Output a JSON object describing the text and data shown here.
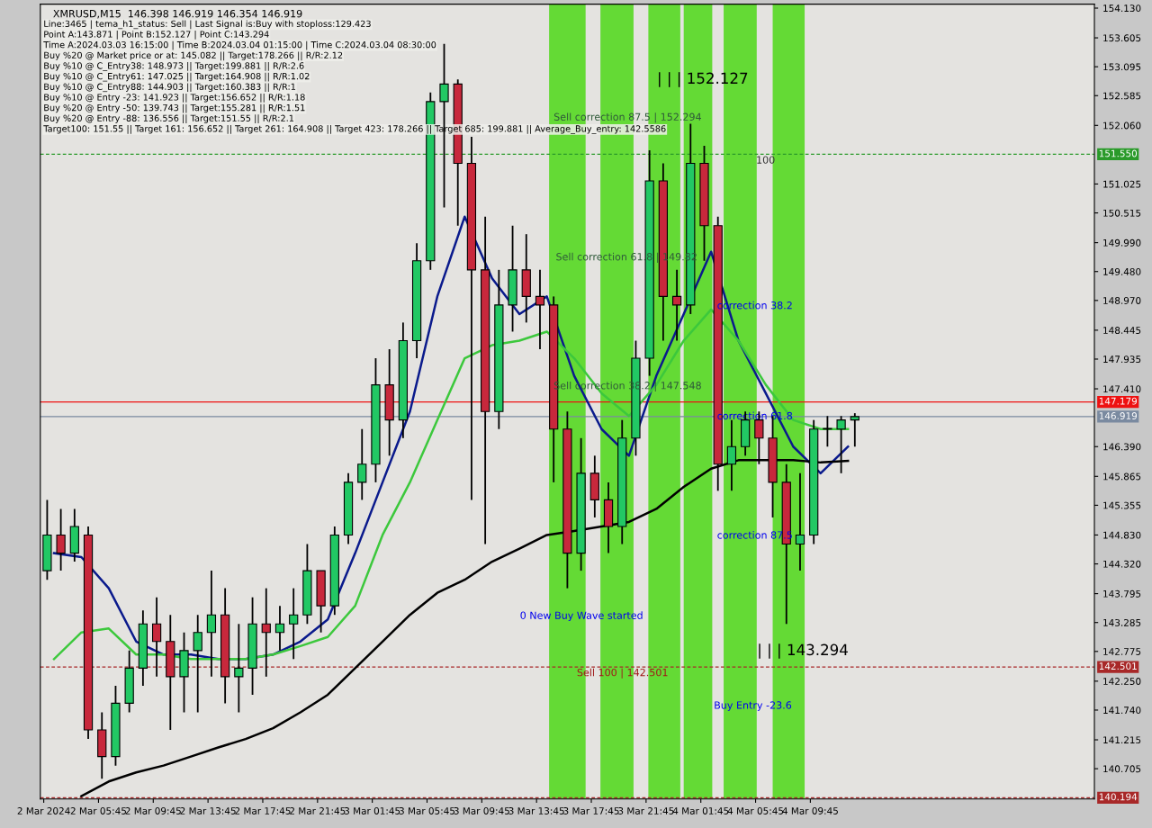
{
  "chart_data": {
    "type": "candlestick",
    "title": "XMRUSD,M15  146.398 146.919 146.354 146.919",
    "x": [
      "2024-03-02T02:00",
      "2024-03-02T03:00",
      "2024-03-02T04:00",
      "2024-03-02T05:00",
      "2024-03-02T06:00",
      "2024-03-02T07:00",
      "2024-03-02T08:00",
      "2024-03-02T09:00",
      "2024-03-02T10:00",
      "2024-03-02T11:00",
      "2024-03-02T12:00",
      "2024-03-02T13:00",
      "2024-03-02T14:00",
      "2024-03-02T15:00",
      "2024-03-02T16:00",
      "2024-03-02T17:00",
      "2024-03-02T18:00",
      "2024-03-02T19:00",
      "2024-03-02T20:00",
      "2024-03-02T21:00",
      "2024-03-02T22:00",
      "2024-03-02T23:00",
      "2024-03-03T00:00",
      "2024-03-03T01:00",
      "2024-03-03T02:00",
      "2024-03-03T03:00",
      "2024-03-03T04:00",
      "2024-03-03T05:00",
      "2024-03-03T06:00",
      "2024-03-03T07:00",
      "2024-03-03T08:00",
      "2024-03-03T09:00",
      "2024-03-03T10:00",
      "2024-03-03T11:00",
      "2024-03-03T12:00",
      "2024-03-03T13:00",
      "2024-03-03T14:00",
      "2024-03-03T15:00",
      "2024-03-03T16:00",
      "2024-03-03T17:00",
      "2024-03-03T18:00",
      "2024-03-03T19:00",
      "2024-03-03T20:00",
      "2024-03-03T21:00",
      "2024-03-03T22:00",
      "2024-03-03T23:00",
      "2024-03-04T00:00",
      "2024-03-04T01:00",
      "2024-03-04T02:00",
      "2024-03-04T03:00",
      "2024-03-04T04:00",
      "2024-03-04T05:00",
      "2024-03-04T06:00",
      "2024-03-04T07:00",
      "2024-03-04T08:00",
      "2024-03-04T09:00",
      "2024-03-04T10:00",
      "2024-03-04T11:00",
      "2024-03-04T12:00",
      "2024-03-04T13:00"
    ],
    "ohlc": [
      [
        144.2,
        145.45,
        144.04,
        144.83
      ],
      [
        144.83,
        145.29,
        144.2,
        144.51
      ],
      [
        144.51,
        145.29,
        144.36,
        144.98
      ],
      [
        144.83,
        144.98,
        141.23,
        141.39
      ],
      [
        141.39,
        141.7,
        140.53,
        140.92
      ],
      [
        140.92,
        142.17,
        140.76,
        141.86
      ],
      [
        141.86,
        142.79,
        141.7,
        142.48
      ],
      [
        142.48,
        143.5,
        142.17,
        143.26
      ],
      [
        143.26,
        143.73,
        142.33,
        142.95
      ],
      [
        142.95,
        143.42,
        141.39,
        142.33
      ],
      [
        142.33,
        143.11,
        141.7,
        142.79
      ],
      [
        142.79,
        143.42,
        141.7,
        143.11
      ],
      [
        143.11,
        144.2,
        142.33,
        143.42
      ],
      [
        143.42,
        143.89,
        141.86,
        142.33
      ],
      [
        142.33,
        143.26,
        141.7,
        142.48
      ],
      [
        142.48,
        143.73,
        142.01,
        143.26
      ],
      [
        143.26,
        143.89,
        142.33,
        143.11
      ],
      [
        143.11,
        143.58,
        142.79,
        143.26
      ],
      [
        143.26,
        143.89,
        142.64,
        143.42
      ],
      [
        143.42,
        144.67,
        143.26,
        144.2
      ],
      [
        144.2,
        144.2,
        143.11,
        143.58
      ],
      [
        143.58,
        144.98,
        143.42,
        144.83
      ],
      [
        144.83,
        145.92,
        144.67,
        145.76
      ],
      [
        145.76,
        146.7,
        145.45,
        146.08
      ],
      [
        146.08,
        147.95,
        145.76,
        147.48
      ],
      [
        147.48,
        148.11,
        146.23,
        146.86
      ],
      [
        146.86,
        148.58,
        146.54,
        148.26
      ],
      [
        148.26,
        149.98,
        147.95,
        149.67
      ],
      [
        149.67,
        152.64,
        149.51,
        152.48
      ],
      [
        152.48,
        153.5,
        150.61,
        152.79
      ],
      [
        152.79,
        152.87,
        150.29,
        151.39
      ],
      [
        151.39,
        151.86,
        145.45,
        149.51
      ],
      [
        149.51,
        150.45,
        144.67,
        147.01
      ],
      [
        147.01,
        149.51,
        146.7,
        148.89
      ],
      [
        148.89,
        150.29,
        148.42,
        149.51
      ],
      [
        149.51,
        150.14,
        148.58,
        149.04
      ],
      [
        149.04,
        149.51,
        148.11,
        148.89
      ],
      [
        148.89,
        149.04,
        145.76,
        146.7
      ],
      [
        146.7,
        147.01,
        143.89,
        144.51
      ],
      [
        144.51,
        146.54,
        144.2,
        145.92
      ],
      [
        145.92,
        146.23,
        145.14,
        145.45
      ],
      [
        145.45,
        145.76,
        144.51,
        144.98
      ],
      [
        144.98,
        146.86,
        144.67,
        146.54
      ],
      [
        146.54,
        148.26,
        146.23,
        147.95
      ],
      [
        147.95,
        151.62,
        147.64,
        151.08
      ],
      [
        151.08,
        151.39,
        148.26,
        149.04
      ],
      [
        149.04,
        149.51,
        148.26,
        148.89
      ],
      [
        148.89,
        152.09,
        148.73,
        151.39
      ],
      [
        151.39,
        151.7,
        149.67,
        150.29
      ],
      [
        150.29,
        150.45,
        145.61,
        146.08
      ],
      [
        146.08,
        146.86,
        145.61,
        146.39
      ],
      [
        146.39,
        147.01,
        146.23,
        146.86
      ],
      [
        146.86,
        147.01,
        146.08,
        146.54
      ],
      [
        146.54,
        146.93,
        145.14,
        145.76
      ],
      [
        145.76,
        146.08,
        143.26,
        144.67
      ],
      [
        144.67,
        145.92,
        144.2,
        144.83
      ],
      [
        144.83,
        146.86,
        144.67,
        146.7
      ],
      [
        146.7,
        146.93,
        146.39,
        146.7
      ],
      [
        146.7,
        146.93,
        145.92,
        146.86
      ],
      [
        146.86,
        146.98,
        146.39,
        146.92
      ]
    ],
    "series": [
      {
        "type": "line",
        "color": "#0a1a8c",
        "x": [
          "2024-03-02T02:30",
          "2024-03-02T04:30",
          "2024-03-02T06:30",
          "2024-03-02T08:30",
          "2024-03-02T10:30",
          "2024-03-02T12:30",
          "2024-03-02T14:30",
          "2024-03-02T16:30",
          "2024-03-02T18:30",
          "2024-03-02T20:30",
          "2024-03-02T22:30",
          "2024-03-03T00:30",
          "2024-03-03T02:30",
          "2024-03-03T04:30",
          "2024-03-03T06:30",
          "2024-03-03T08:30",
          "2024-03-03T10:30",
          "2024-03-03T12:30",
          "2024-03-03T14:30",
          "2024-03-03T16:30",
          "2024-03-03T18:30",
          "2024-03-03T20:30",
          "2024-03-03T22:30",
          "2024-03-04T00:30",
          "2024-03-04T02:30",
          "2024-03-04T04:30",
          "2024-03-04T06:30",
          "2024-03-04T08:30",
          "2024-03-04T10:30",
          "2024-03-04T12:30"
        ],
        "values": [
          144.51,
          144.44,
          143.89,
          142.95,
          142.72,
          142.72,
          142.64,
          142.64,
          142.72,
          142.95,
          143.34,
          144.51,
          145.76,
          147.01,
          149.04,
          150.45,
          149.36,
          148.73,
          149.04,
          147.64,
          146.7,
          146.23,
          147.64,
          148.73,
          149.83,
          148.26,
          147.33,
          146.39,
          145.92,
          146.39
        ]
      },
      {
        "type": "line",
        "color": "#3cc83c",
        "x": [
          "2024-03-02T02:30",
          "2024-03-02T04:30",
          "2024-03-02T06:30",
          "2024-03-02T08:30",
          "2024-03-02T10:30",
          "2024-03-02T12:30",
          "2024-03-02T14:30",
          "2024-03-02T16:30",
          "2024-03-02T18:30",
          "2024-03-02T20:30",
          "2024-03-02T22:30",
          "2024-03-03T00:30",
          "2024-03-03T02:30",
          "2024-03-03T04:30",
          "2024-03-03T06:30",
          "2024-03-03T08:30",
          "2024-03-03T10:30",
          "2024-03-03T12:30",
          "2024-03-03T14:30",
          "2024-03-03T16:30",
          "2024-03-03T18:30",
          "2024-03-03T20:30",
          "2024-03-03T22:30",
          "2024-03-04T00:30",
          "2024-03-04T02:30",
          "2024-03-04T04:30",
          "2024-03-04T06:30",
          "2024-03-04T08:30",
          "2024-03-04T10:30",
          "2024-03-04T12:30"
        ],
        "values": [
          142.64,
          143.11,
          143.18,
          142.72,
          142.72,
          142.64,
          142.64,
          142.64,
          142.72,
          142.87,
          143.03,
          143.58,
          144.83,
          145.76,
          146.86,
          147.95,
          148.18,
          148.26,
          148.42,
          147.95,
          147.33,
          146.93,
          147.48,
          148.26,
          148.81,
          148.26,
          147.48,
          146.86,
          146.7,
          146.7
        ]
      },
      {
        "type": "line",
        "color": "#000000",
        "x": [
          "2024-03-02T04:30",
          "2024-03-02T06:30",
          "2024-03-02T08:30",
          "2024-03-02T10:30",
          "2024-03-02T12:30",
          "2024-03-02T14:30",
          "2024-03-02T16:30",
          "2024-03-02T18:30",
          "2024-03-02T20:30",
          "2024-03-02T22:30",
          "2024-03-03T00:30",
          "2024-03-03T02:30",
          "2024-03-03T04:30",
          "2024-03-03T06:30",
          "2024-03-03T08:30",
          "2024-03-03T10:30",
          "2024-03-03T12:30",
          "2024-03-03T14:30",
          "2024-03-03T16:30",
          "2024-03-03T18:30",
          "2024-03-03T20:30",
          "2024-03-03T22:30",
          "2024-03-04T00:30",
          "2024-03-04T02:30",
          "2024-03-04T04:30",
          "2024-03-04T06:30",
          "2024-03-04T08:30",
          "2024-03-04T10:30",
          "2024-03-04T12:30"
        ],
        "values": [
          140.22,
          140.48,
          140.64,
          140.76,
          140.92,
          141.08,
          141.23,
          141.42,
          141.7,
          142.01,
          142.48,
          142.95,
          143.42,
          143.81,
          144.04,
          144.36,
          144.59,
          144.83,
          144.9,
          144.98,
          145.06,
          145.29,
          145.68,
          146.0,
          146.15,
          146.15,
          146.15,
          146.11,
          146.14
        ]
      }
    ],
    "xlim": [
      "2024-03-02T01:30",
      "2024-03-05T06:30"
    ],
    "xticks": [
      {
        "value": "2024-03-02T01:45",
        "label": "2 Mar 2024"
      },
      {
        "value": "2024-03-02T05:45",
        "label": "2 Mar 05:45"
      },
      {
        "value": "2024-03-02T09:45",
        "label": "2 Mar 09:45"
      },
      {
        "value": "2024-03-02T13:45",
        "label": "2 Mar 13:45"
      },
      {
        "value": "2024-03-02T17:45",
        "label": "2 Mar 17:45"
      },
      {
        "value": "2024-03-02T21:45",
        "label": "2 Mar 21:45"
      },
      {
        "value": "2024-03-03T01:45",
        "label": "3 Mar 01:45"
      },
      {
        "value": "2024-03-03T05:45",
        "label": "3 Mar 05:45"
      },
      {
        "value": "2024-03-03T09:45",
        "label": "3 Mar 09:45"
      },
      {
        "value": "2024-03-03T13:45",
        "label": "3 Mar 13:45"
      },
      {
        "value": "2024-03-03T17:45",
        "label": "3 Mar 17:45"
      },
      {
        "value": "2024-03-03T21:45",
        "label": "3 Mar 21:45"
      },
      {
        "value": "2024-03-04T01:45",
        "label": "4 Mar 01:45"
      },
      {
        "value": "2024-03-04T05:45",
        "label": "4 Mar 05:45"
      },
      {
        "value": "2024-03-04T09:45",
        "label": "4 Mar 09:45"
      }
    ],
    "ylim": [
      140.17,
      154.2
    ],
    "yticks": [
      {
        "value": 154.13,
        "label": "154.130"
      },
      {
        "value": 153.605,
        "label": "153.605"
      },
      {
        "value": 153.095,
        "label": "153.095"
      },
      {
        "value": 152.585,
        "label": "152.585"
      },
      {
        "value": 152.06,
        "label": "152.060"
      },
      {
        "value": 151.025,
        "label": "151.025"
      },
      {
        "value": 150.515,
        "label": "150.515"
      },
      {
        "value": 149.99,
        "label": "149.990"
      },
      {
        "value": 149.48,
        "label": "149.480"
      },
      {
        "value": 148.97,
        "label": "148.970"
      },
      {
        "value": 148.445,
        "label": "148.445"
      },
      {
        "value": 147.935,
        "label": "147.935"
      },
      {
        "value": 147.41,
        "label": "147.410"
      },
      {
        "value": 146.39,
        "label": "146.390"
      },
      {
        "value": 145.865,
        "label": "145.865"
      },
      {
        "value": 145.355,
        "label": "145.355"
      },
      {
        "value": 144.83,
        "label": "144.830"
      },
      {
        "value": 144.32,
        "label": "144.320"
      },
      {
        "value": 143.795,
        "label": "143.795"
      },
      {
        "value": 143.285,
        "label": "143.285"
      },
      {
        "value": 142.775,
        "label": "142.775"
      },
      {
        "value": 142.25,
        "label": "142.250"
      },
      {
        "value": 141.74,
        "label": "141.740"
      },
      {
        "value": 141.215,
        "label": "141.215"
      },
      {
        "value": 140.705,
        "label": "140.705"
      }
    ],
    "ref_lines": [
      {
        "axis": "y",
        "value": 151.55,
        "label": "151.550",
        "color": "#2a9a2a",
        "line_style": "dashed"
      },
      {
        "axis": "y",
        "value": 147.179,
        "label": "147.179",
        "color": "#ee1111",
        "line_style": "solid"
      },
      {
        "axis": "y",
        "value": 146.919,
        "label": "146.919",
        "color": "#7a8aa0",
        "line_style": "solid"
      },
      {
        "axis": "y",
        "value": 142.501,
        "label": "142.501",
        "color": "#a82828",
        "line_style": "dashed"
      },
      {
        "axis": "y",
        "value": 140.194,
        "label": "140.194",
        "color": "#a82828",
        "line_style": "dashed"
      }
    ],
    "bands": [
      {
        "axis": "x",
        "from": "2024-03-03T14:40",
        "to": "2024-03-03T17:20",
        "color": "#55d822"
      },
      {
        "axis": "x",
        "from": "2024-03-03T18:25",
        "to": "2024-03-03T20:50",
        "color": "#55d822"
      },
      {
        "axis": "x",
        "from": "2024-03-03T21:55",
        "to": "2024-03-04T00:15",
        "color": "#55d822"
      },
      {
        "axis": "x",
        "from": "2024-03-04T00:30",
        "to": "2024-03-04T02:35",
        "color": "#55d822"
      },
      {
        "axis": "x",
        "from": "2024-03-04T03:25",
        "to": "2024-03-04T05:50",
        "color": "#55d822"
      },
      {
        "axis": "x",
        "from": "2024-03-04T07:00",
        "to": "2024-03-04T09:20",
        "color": "#55d822"
      }
    ],
    "annotations": [
      "Line:3465 | tema_h1_status: Sell | Last Signal is:Buy with stoploss:129.423",
      "Point A:143.871 | Point B:152.127 | Point C:143.294",
      "Time A:2024.03.03 16:15:00 | Time B:2024.03.04 01:15:00 | Time C:2024.03.04 08:30:00",
      "Buy %20 @ Market price or at: 145.082 || Target:178.266 || R/R:2.12",
      "Buy %10 @ C_Entry38: 148.973 || Target:199.881 || R/R:2.6",
      "Buy %10 @ C_Entry61: 147.025 || Target:164.908 || R/R:1.02",
      "Buy %10 @ C_Entry88: 144.903 || Target:160.383 || R/R:1",
      "Buy %10 @ Entry -23: 141.923 || Target:156.652 || R/R:1.18",
      "Buy %20 @ Entry -50: 139.743 || Target:155.281 || R/R:1.51",
      "Buy %20 @ Entry -88: 136.556 || Target:151.55 || R/R:2.1",
      "Target100: 151.55 || Target 161: 156.652 || Target 261: 164.908 || Target 423: 178.266 || Target 685: 199.881 || Average_Buy_entry: 142.5586",
      "Sell correction 87.5 | 152.294",
      "Sell correction 61.8 | 149.82",
      "Sell correction 38.2 | 147.548",
      "| | | 152.127",
      "100",
      "correction 38.2",
      "correction 61.8",
      "correction 87.5",
      "0 New Buy Wave started",
      "| | | 143.294",
      "Sell 100 | 142.501",
      "Buy Entry -23.6"
    ]
  }
}
